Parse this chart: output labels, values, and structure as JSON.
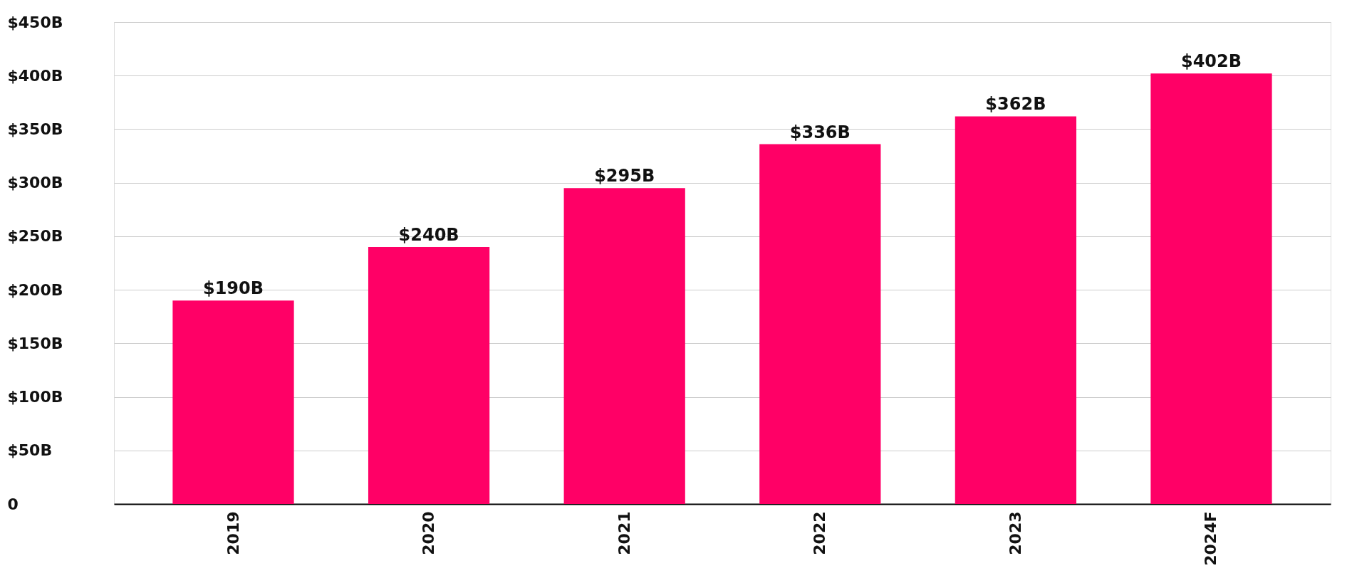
{
  "chart_data": {
    "type": "bar",
    "categories": [
      "2019",
      "2020",
      "2021",
      "2022",
      "2023",
      "2024F"
    ],
    "values": [
      190,
      240,
      295,
      336,
      362,
      402
    ],
    "value_labels": [
      "$190B",
      "$240B",
      "$295B",
      "$336B",
      "$362B",
      "$402B"
    ],
    "color": "#ff0066",
    "ylim": [
      0,
      450
    ],
    "yticks": [
      0,
      {
        "value": 50,
        "label": "$50B"
      },
      {
        "value": 100,
        "label": "$100B"
      },
      {
        "value": 150,
        "label": "$150B"
      },
      {
        "value": 200,
        "label": "$200B"
      },
      {
        "value": 250,
        "label": "$250B"
      },
      {
        "value": 300,
        "label": "$300B"
      },
      {
        "value": 350,
        "label": "$350B"
      },
      {
        "value": 400,
        "label": "$400B"
      },
      {
        "value": 450,
        "label": "$450B"
      }
    ],
    "grid": "y"
  }
}
